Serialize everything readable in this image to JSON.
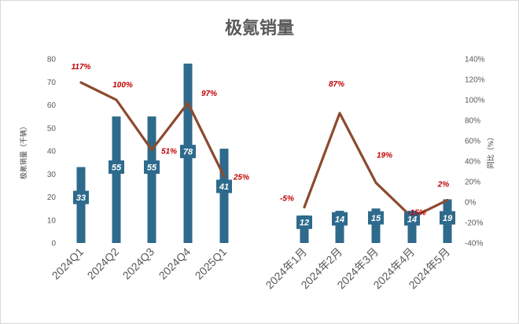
{
  "chart_data": {
    "type": "bar",
    "title": "极氪销量",
    "ylabel": "极氪销量（千辆）",
    "y2label": "同比（%）",
    "ylim": [
      0,
      80
    ],
    "y2lim": [
      -40,
      140
    ],
    "yticks": [
      "0",
      "10",
      "20",
      "30",
      "40",
      "50",
      "60",
      "70",
      "80"
    ],
    "y2ticks": [
      "-40%",
      "-20%",
      "0%",
      "20%",
      "40%",
      "60%",
      "80%",
      "100%",
      "120%",
      "140%"
    ],
    "groups": [
      {
        "categories": [
          "2024Q1",
          "2024Q2",
          "2024Q3",
          "2024Q4",
          "2025Q1"
        ],
        "values": [
          33,
          55,
          55,
          78,
          41
        ],
        "value_labels": [
          "33",
          "55",
          "55",
          "78",
          "41"
        ],
        "yoy": [
          117,
          100,
          51,
          97,
          25
        ],
        "yoy_labels": [
          "117%",
          "100%",
          "51%",
          "97%",
          "25%"
        ]
      },
      {
        "categories": [
          "2024年1月",
          "2024年2月",
          "2024年3月",
          "2024年4月",
          "2024年5月"
        ],
        "values": [
          12,
          14,
          15,
          14,
          19
        ],
        "value_labels": [
          "12",
          "14",
          "15",
          "14",
          "19"
        ],
        "yoy": [
          -5,
          87,
          19,
          -15,
          2
        ],
        "yoy_labels": [
          "-5%",
          "87%",
          "19%",
          "-15%",
          "2%"
        ]
      }
    ],
    "colors": {
      "bar": "#2e6a8c",
      "line": "#8c4a2f",
      "pct_label": "#c00000"
    },
    "grid": false,
    "legend": "none"
  }
}
